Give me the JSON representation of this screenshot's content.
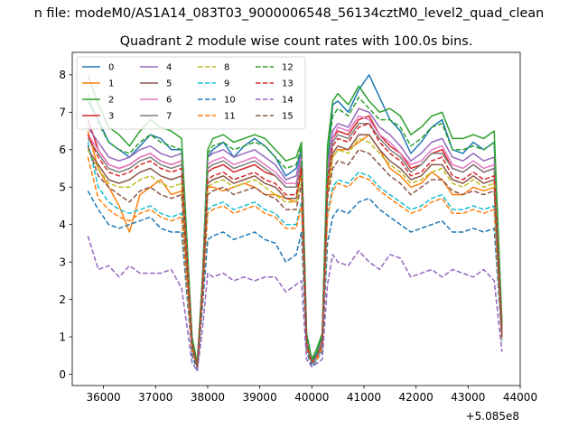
{
  "suptitle": "n file: modeM0/AS1A14_083T03_9000006548_56134cztM0_level2_quad_clean",
  "chart_data": {
    "type": "line",
    "title": "Quadrant 2 module wise count rates with 100.0s bins.",
    "xlabel": "",
    "ylabel": "",
    "x_offset_label": "+5.085e8",
    "xlim": [
      35400,
      44000
    ],
    "ylim": [
      -0.3,
      8.6
    ],
    "x_ticks": [
      36000,
      37000,
      38000,
      39000,
      40000,
      41000,
      42000,
      43000,
      44000
    ],
    "y_ticks": [
      0,
      1,
      2,
      3,
      4,
      5,
      6,
      7,
      8
    ],
    "grid": false,
    "legend_position": "top-left",
    "legend_columns": 4,
    "x": [
      35700,
      35900,
      36100,
      36300,
      36500,
      36700,
      36900,
      37100,
      37300,
      37500,
      37700,
      37800,
      37900,
      38000,
      38100,
      38300,
      38500,
      38700,
      38900,
      39100,
      39300,
      39500,
      39700,
      39800,
      39900,
      40000,
      40100,
      40200,
      40300,
      40400,
      40500,
      40700,
      40900,
      41100,
      41300,
      41500,
      41700,
      41900,
      42100,
      42300,
      42500,
      42700,
      42900,
      43100,
      43300,
      43500,
      43650
    ],
    "series": [
      {
        "name": "0",
        "color": "#1f77b4",
        "style": "solid",
        "values": [
          7.3,
          6.8,
          6.2,
          6.0,
          5.8,
          6.1,
          6.4,
          6.3,
          6.0,
          6.0,
          0.9,
          0.2,
          2.5,
          5.8,
          6.0,
          6.2,
          5.8,
          6.1,
          6.3,
          6.1,
          5.8,
          5.3,
          5.5,
          6.0,
          1.0,
          0.3,
          0.6,
          1.0,
          5.6,
          7.2,
          7.3,
          7.0,
          7.6,
          8.0,
          7.4,
          6.8,
          6.5,
          5.9,
          6.2,
          6.6,
          6.8,
          6.0,
          5.9,
          6.2,
          6.0,
          6.2,
          1.2
        ]
      },
      {
        "name": "1",
        "color": "#ff7f0e",
        "style": "solid",
        "values": [
          6.5,
          5.5,
          5.0,
          4.5,
          3.8,
          4.8,
          5.0,
          5.2,
          4.8,
          4.9,
          0.8,
          0.2,
          2.2,
          5.0,
          5.0,
          4.9,
          5.0,
          5.1,
          5.0,
          4.8,
          4.8,
          4.7,
          4.6,
          5.5,
          0.9,
          0.3,
          0.5,
          0.8,
          4.8,
          5.8,
          6.0,
          6.0,
          6.2,
          6.4,
          6.0,
          5.5,
          5.3,
          5.0,
          5.1,
          5.4,
          5.2,
          4.8,
          4.8,
          5.0,
          4.9,
          5.0,
          1.0
        ]
      },
      {
        "name": "2",
        "color": "#2ca02c",
        "style": "solid",
        "values": [
          8.0,
          7.2,
          6.6,
          6.4,
          6.1,
          6.5,
          6.8,
          6.6,
          6.5,
          6.3,
          1.0,
          0.3,
          2.6,
          6.0,
          6.3,
          6.4,
          6.2,
          6.3,
          6.4,
          6.3,
          6.0,
          5.7,
          5.8,
          6.2,
          1.1,
          0.4,
          0.7,
          1.1,
          6.1,
          7.3,
          7.5,
          7.2,
          7.7,
          7.3,
          7.0,
          7.1,
          6.9,
          6.4,
          6.6,
          6.9,
          7.0,
          6.3,
          6.3,
          6.4,
          6.3,
          6.5,
          1.4
        ]
      },
      {
        "name": "3",
        "color": "#d62728",
        "style": "solid",
        "values": [
          6.8,
          6.0,
          5.6,
          5.5,
          5.6,
          5.8,
          5.9,
          5.7,
          5.6,
          5.7,
          0.8,
          0.2,
          2.4,
          5.4,
          5.5,
          5.6,
          5.4,
          5.5,
          5.6,
          5.4,
          5.3,
          5.0,
          5.0,
          5.7,
          0.9,
          0.3,
          0.5,
          0.9,
          5.3,
          6.3,
          6.5,
          6.4,
          6.8,
          6.9,
          6.4,
          6.1,
          5.9,
          5.5,
          5.6,
          5.9,
          6.0,
          5.5,
          5.4,
          5.6,
          5.4,
          5.5,
          1.2
        ]
      },
      {
        "name": "4",
        "color": "#9467bd",
        "style": "solid",
        "values": [
          6.6,
          6.2,
          5.8,
          5.7,
          5.8,
          6.0,
          6.1,
          5.9,
          5.8,
          5.9,
          0.8,
          0.2,
          2.5,
          5.8,
          5.9,
          6.0,
          5.8,
          5.9,
          6.0,
          5.8,
          5.6,
          5.2,
          5.3,
          5.9,
          0.9,
          0.3,
          0.5,
          0.9,
          5.5,
          6.5,
          6.7,
          6.6,
          7.1,
          7.0,
          6.6,
          6.4,
          6.1,
          5.7,
          5.9,
          6.2,
          6.3,
          5.8,
          5.7,
          5.9,
          5.7,
          5.8,
          1.2
        ]
      },
      {
        "name": "5",
        "color": "#8c564b",
        "style": "solid",
        "values": [
          6.0,
          5.6,
          5.2,
          5.1,
          5.2,
          5.4,
          5.5,
          5.3,
          5.2,
          5.3,
          0.7,
          0.2,
          2.2,
          5.1,
          5.2,
          5.3,
          5.1,
          5.2,
          5.3,
          5.1,
          5.0,
          4.7,
          4.7,
          5.4,
          0.8,
          0.3,
          0.5,
          0.8,
          5.0,
          5.9,
          6.1,
          6.0,
          6.4,
          6.4,
          6.0,
          5.7,
          5.5,
          5.2,
          5.3,
          5.6,
          5.6,
          5.2,
          5.1,
          5.3,
          5.1,
          5.2,
          1.1
        ]
      },
      {
        "name": "6",
        "color": "#e377c2",
        "style": "solid",
        "values": [
          6.4,
          6.0,
          5.6,
          5.5,
          5.6,
          5.8,
          5.9,
          5.7,
          5.6,
          5.7,
          0.8,
          0.2,
          2.4,
          5.6,
          5.7,
          5.8,
          5.6,
          5.7,
          5.8,
          5.6,
          5.4,
          5.1,
          5.1,
          5.8,
          0.9,
          0.3,
          0.5,
          0.9,
          5.4,
          6.3,
          6.6,
          6.5,
          6.9,
          6.8,
          6.4,
          6.2,
          5.9,
          5.6,
          5.7,
          6.0,
          6.1,
          5.6,
          5.5,
          5.7,
          5.5,
          5.6,
          1.2
        ]
      },
      {
        "name": "7",
        "color": "#7f7f7f",
        "style": "solid",
        "values": [
          6.3,
          5.9,
          5.5,
          5.4,
          5.5,
          5.7,
          5.8,
          5.6,
          5.5,
          5.6,
          0.8,
          0.2,
          2.3,
          5.5,
          5.6,
          5.7,
          5.5,
          5.6,
          5.7,
          5.5,
          5.3,
          5.0,
          5.0,
          5.7,
          0.8,
          0.3,
          0.5,
          0.8,
          5.3,
          6.2,
          6.4,
          6.3,
          6.7,
          6.7,
          6.3,
          6.0,
          5.8,
          5.4,
          5.6,
          5.9,
          5.9,
          5.5,
          5.4,
          5.6,
          5.4,
          5.5,
          1.1
        ]
      },
      {
        "name": "8",
        "color": "#bcbd22",
        "style": "dashed",
        "values": [
          6.0,
          5.5,
          5.1,
          5.0,
          5.0,
          5.2,
          5.3,
          5.1,
          5.0,
          5.1,
          0.7,
          0.2,
          2.2,
          5.0,
          5.1,
          5.2,
          5.0,
          5.1,
          5.2,
          5.0,
          4.8,
          4.6,
          4.6,
          5.3,
          0.8,
          0.3,
          0.5,
          0.8,
          4.9,
          5.8,
          6.0,
          5.9,
          6.3,
          6.2,
          5.9,
          5.6,
          5.4,
          5.1,
          5.2,
          5.4,
          5.5,
          5.1,
          5.0,
          5.2,
          5.0,
          5.1,
          1.0
        ]
      },
      {
        "name": "9",
        "color": "#17becf",
        "style": "dashed",
        "values": [
          6.2,
          5.0,
          4.6,
          4.4,
          4.3,
          4.4,
          4.5,
          4.3,
          4.2,
          4.3,
          0.6,
          0.2,
          2.0,
          4.4,
          4.5,
          4.6,
          4.4,
          4.5,
          4.6,
          4.4,
          4.3,
          4.0,
          4.0,
          4.6,
          0.7,
          0.3,
          0.4,
          0.7,
          4.3,
          5.0,
          5.2,
          5.1,
          5.4,
          5.3,
          5.0,
          4.8,
          4.6,
          4.4,
          4.5,
          4.7,
          4.8,
          4.4,
          4.4,
          4.5,
          4.4,
          4.5,
          0.9
        ]
      },
      {
        "name": "10",
        "color": "#1f77b4",
        "style": "dashed",
        "values": [
          4.9,
          4.4,
          4.0,
          3.9,
          4.0,
          4.1,
          4.2,
          3.9,
          3.8,
          3.8,
          0.5,
          0.1,
          1.8,
          3.6,
          3.7,
          3.8,
          3.6,
          3.7,
          3.8,
          3.6,
          3.5,
          3.0,
          3.2,
          3.8,
          0.6,
          0.2,
          0.4,
          0.6,
          3.5,
          4.2,
          4.4,
          4.3,
          4.6,
          4.7,
          4.4,
          4.2,
          4.0,
          3.8,
          3.9,
          4.0,
          4.1,
          3.8,
          3.8,
          3.9,
          3.8,
          3.9,
          0.9
        ]
      },
      {
        "name": "11",
        "color": "#ff7f0e",
        "style": "dashed",
        "values": [
          5.8,
          4.7,
          4.4,
          4.2,
          4.1,
          4.3,
          4.4,
          4.2,
          4.1,
          4.2,
          0.6,
          0.2,
          2.0,
          4.3,
          4.4,
          4.5,
          4.3,
          4.4,
          4.5,
          4.3,
          4.2,
          3.9,
          3.9,
          4.5,
          0.7,
          0.3,
          0.4,
          0.7,
          4.2,
          4.9,
          5.1,
          5.0,
          5.3,
          5.2,
          4.9,
          4.7,
          4.5,
          4.3,
          4.4,
          4.6,
          4.7,
          4.3,
          4.3,
          4.4,
          4.3,
          4.4,
          0.9
        ]
      },
      {
        "name": "12",
        "color": "#2ca02c",
        "style": "dashed",
        "values": [
          7.5,
          6.7,
          6.2,
          6.0,
          5.9,
          6.2,
          6.4,
          6.2,
          6.1,
          6.0,
          0.9,
          0.3,
          2.5,
          5.9,
          6.1,
          6.2,
          6.0,
          6.1,
          6.2,
          6.1,
          5.8,
          5.5,
          5.6,
          6.1,
          1.0,
          0.4,
          0.6,
          1.0,
          5.8,
          6.9,
          7.1,
          6.9,
          7.4,
          7.1,
          6.8,
          6.8,
          6.6,
          6.1,
          6.3,
          6.6,
          6.7,
          6.0,
          6.0,
          6.1,
          6.0,
          6.2,
          1.3
        ]
      },
      {
        "name": "13",
        "color": "#d62728",
        "style": "dashed",
        "values": [
          6.4,
          5.8,
          5.4,
          5.3,
          5.4,
          5.6,
          5.7,
          5.5,
          5.4,
          5.5,
          0.8,
          0.2,
          2.3,
          5.2,
          5.3,
          5.4,
          5.2,
          5.3,
          5.4,
          5.2,
          5.1,
          4.8,
          4.8,
          5.5,
          0.8,
          0.3,
          0.5,
          0.8,
          5.1,
          6.1,
          6.3,
          6.2,
          6.6,
          6.7,
          6.2,
          5.9,
          5.7,
          5.3,
          5.4,
          5.7,
          5.8,
          5.3,
          5.2,
          5.4,
          5.2,
          5.3,
          1.1
        ]
      },
      {
        "name": "14",
        "color": "#9467bd",
        "style": "dashed",
        "values": [
          3.7,
          2.8,
          2.9,
          2.6,
          2.9,
          2.7,
          2.7,
          2.7,
          2.8,
          2.3,
          0.3,
          0.1,
          1.2,
          2.7,
          2.6,
          2.7,
          2.5,
          2.6,
          2.5,
          2.6,
          2.6,
          2.2,
          2.4,
          2.5,
          0.4,
          0.2,
          0.3,
          0.4,
          2.4,
          3.2,
          3.0,
          2.9,
          3.3,
          3.0,
          2.8,
          3.2,
          3.1,
          2.6,
          2.7,
          2.8,
          2.6,
          2.8,
          2.7,
          2.6,
          2.8,
          2.5,
          0.6
        ]
      },
      {
        "name": "15",
        "color": "#8c564b",
        "style": "dashed",
        "values": [
          6.1,
          5.3,
          5.0,
          4.8,
          4.6,
          4.9,
          5.0,
          4.8,
          4.7,
          4.8,
          0.7,
          0.2,
          2.1,
          4.8,
          4.9,
          5.0,
          4.8,
          4.9,
          5.0,
          4.8,
          4.7,
          4.4,
          4.4,
          5.1,
          0.8,
          0.3,
          0.5,
          0.8,
          4.7,
          5.5,
          5.7,
          5.6,
          6.0,
          5.9,
          5.6,
          5.3,
          5.1,
          4.8,
          5.0,
          5.2,
          5.2,
          4.9,
          4.8,
          4.9,
          4.8,
          4.9,
          1.0
        ]
      }
    ]
  }
}
